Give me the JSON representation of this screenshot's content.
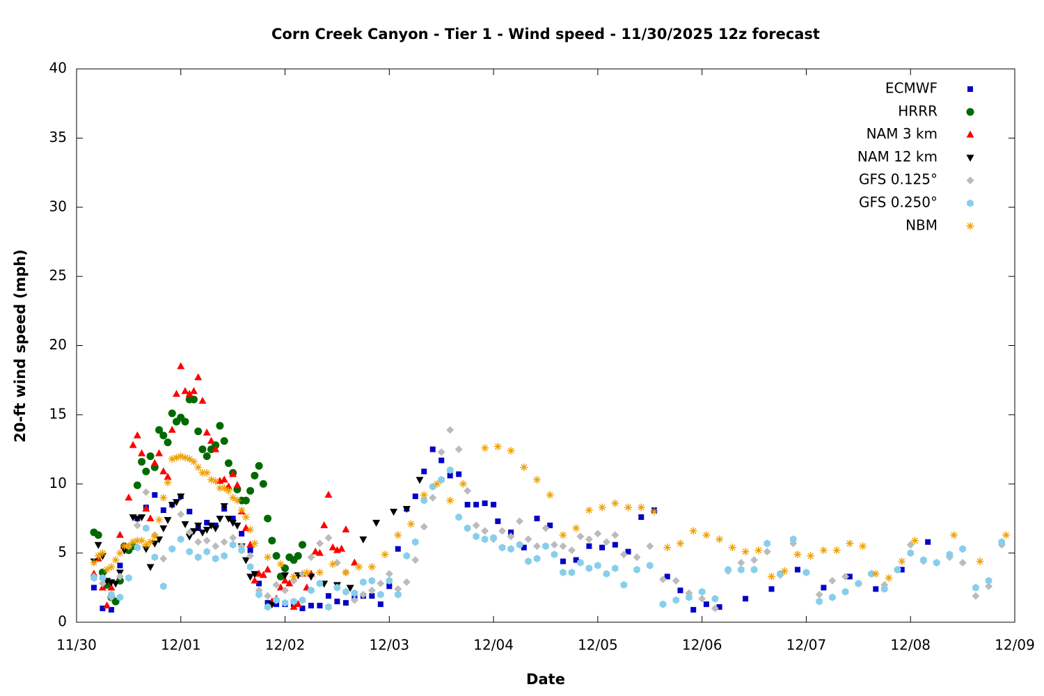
{
  "chart_data": {
    "type": "scatter",
    "title": "Corn Creek Canyon - Tier 1 - Wind speed - 11/30/2025 12z forecast",
    "x_label": "Date",
    "y_label": "20-ft wind speed (mph)",
    "xlim": [
      0,
      216
    ],
    "ylim": [
      0,
      40
    ],
    "xticks": [
      {
        "value": 0,
        "label": "11/30"
      },
      {
        "value": 24,
        "label": "12/01"
      },
      {
        "value": 48,
        "label": "12/02"
      },
      {
        "value": 72,
        "label": "12/03"
      },
      {
        "value": 96,
        "label": "12/04"
      },
      {
        "value": 120,
        "label": "12/05"
      },
      {
        "value": 144,
        "label": "12/06"
      },
      {
        "value": 168,
        "label": "12/07"
      },
      {
        "value": 192,
        "label": "12/08"
      },
      {
        "value": 216,
        "label": "12/09"
      }
    ],
    "yticks": [
      0,
      5,
      10,
      15,
      20,
      25,
      30,
      35,
      40
    ],
    "grid": false,
    "legend": "top-right",
    "series": [
      {
        "name": "ECMWF",
        "color": "#0000c8",
        "marker": "square",
        "x": [
          4,
          6,
          8,
          10,
          12,
          14,
          16,
          18,
          20,
          22,
          24,
          26,
          28,
          30,
          32,
          34,
          36,
          38,
          40,
          42,
          44,
          46,
          48,
          50,
          52,
          54,
          56,
          58,
          60,
          62,
          64,
          66,
          68,
          70,
          72,
          74,
          76,
          78,
          80,
          82,
          84,
          86,
          88,
          90,
          92,
          94,
          96,
          97,
          100,
          103,
          106,
          109,
          112,
          115,
          118,
          121,
          124,
          127,
          130,
          133,
          136,
          139,
          142,
          145,
          148,
          154,
          160,
          166,
          172,
          178,
          184,
          190,
          196
        ],
        "values": [
          2.5,
          1.0,
          0.9,
          4.1,
          5.2,
          7.5,
          8.3,
          9.2,
          8.1,
          8.5,
          9.1,
          8.0,
          6.8,
          7.2,
          7.0,
          8.2,
          7.5,
          6.4,
          5.2,
          2.8,
          1.4,
          1.3,
          1.3,
          1.3,
          1.0,
          1.2,
          1.2,
          1.9,
          1.5,
          1.4,
          1.8,
          1.9,
          1.9,
          1.3,
          2.6,
          5.3,
          8.2,
          9.1,
          10.9,
          12.5,
          11.7,
          10.6,
          10.7,
          8.5,
          8.5,
          8.6,
          8.5,
          7.3,
          6.5,
          5.4,
          7.5,
          7.0,
          4.4,
          4.5,
          5.5,
          5.4,
          5.6,
          5.1,
          7.6,
          8.1,
          3.3,
          2.3,
          0.9,
          1.3,
          1.1,
          1.7,
          2.4,
          3.8,
          2.5,
          3.3,
          2.4,
          3.8,
          5.8
        ]
      },
      {
        "name": "HRRR",
        "color": "#006a00",
        "marker": "circle",
        "x": [
          4,
          5,
          6,
          7,
          8,
          9,
          10,
          11,
          12,
          13,
          14,
          15,
          16,
          17,
          18,
          19,
          20,
          21,
          22,
          23,
          24,
          25,
          26,
          27,
          28,
          29,
          30,
          31,
          32,
          33,
          34,
          35,
          36,
          37,
          38,
          39,
          40,
          41,
          42,
          43,
          44,
          45,
          46,
          47,
          48,
          49,
          50,
          51,
          52
        ],
        "values": [
          6.5,
          6.3,
          3.6,
          2.7,
          1.8,
          1.5,
          3.0,
          5.5,
          5.2,
          5.5,
          9.9,
          11.6,
          10.9,
          12.0,
          11.2,
          13.9,
          13.5,
          13.0,
          15.1,
          14.5,
          14.8,
          14.5,
          16.1,
          16.1,
          13.8,
          12.5,
          12.0,
          12.5,
          12.8,
          14.2,
          13.1,
          11.5,
          10.8,
          9.6,
          8.8,
          8.8,
          9.5,
          10.6,
          11.3,
          10.0,
          7.5,
          5.9,
          4.8,
          3.3,
          3.9,
          4.7,
          4.5,
          4.8,
          5.6
        ]
      },
      {
        "name": "NAM 3 km",
        "color": "#ff0000",
        "marker": "triangle-up",
        "x": [
          4,
          5,
          6,
          7,
          8,
          10,
          11,
          12,
          13,
          14,
          15,
          16,
          17,
          18,
          19,
          20,
          21,
          22,
          23,
          24,
          25,
          26,
          27,
          28,
          29,
          30,
          31,
          32,
          33,
          34,
          35,
          36,
          37,
          38,
          39,
          40,
          41,
          42,
          43,
          44,
          45,
          46,
          47,
          48,
          49,
          50,
          51,
          52,
          53,
          54,
          55,
          56,
          57,
          58,
          59,
          60,
          61,
          62,
          64
        ],
        "values": [
          3.5,
          4.6,
          2.5,
          1.2,
          2.5,
          6.3,
          5.5,
          9.0,
          12.8,
          13.5,
          12.2,
          8.2,
          7.5,
          11.5,
          12.2,
          10.9,
          10.5,
          13.9,
          16.5,
          18.5,
          16.7,
          16.5,
          16.7,
          17.7,
          16.0,
          13.7,
          13.1,
          12.5,
          10.2,
          10.3,
          9.8,
          10.7,
          9.9,
          8.0,
          6.8,
          5.6,
          3.0,
          3.5,
          3.4,
          3.8,
          1.5,
          1.7,
          2.5,
          3.0,
          2.8,
          1.1,
          1.3,
          3.5,
          2.5,
          3.5,
          5.1,
          5.0,
          7.0,
          9.2,
          5.4,
          5.2,
          5.3,
          6.7,
          4.3
        ]
      },
      {
        "name": "NAM 12 km",
        "color": "#000000",
        "marker": "triangle-down",
        "x": [
          4,
          5,
          6,
          7,
          8,
          9,
          10,
          11,
          13,
          14,
          15,
          16,
          17,
          18,
          19,
          20,
          21,
          22,
          23,
          24,
          25,
          26,
          27,
          28,
          29,
          30,
          31,
          32,
          33,
          34,
          35,
          36,
          37,
          38,
          39,
          40,
          41,
          45,
          48,
          51,
          54,
          57,
          60,
          63,
          66,
          69,
          73,
          76,
          79
        ],
        "values": [
          4.4,
          5.6,
          4.8,
          3.0,
          2.9,
          2.8,
          3.6,
          5.2,
          7.6,
          7.5,
          7.6,
          5.3,
          4.0,
          5.7,
          6.0,
          6.8,
          7.4,
          8.5,
          8.7,
          9.1,
          7.1,
          6.2,
          6.6,
          7.0,
          6.5,
          6.7,
          7.0,
          6.8,
          7.5,
          8.4,
          7.5,
          7.2,
          7.0,
          5.5,
          4.5,
          3.3,
          3.5,
          1.3,
          3.4,
          3.4,
          3.3,
          2.8,
          2.7,
          2.5,
          6.0,
          7.2,
          8.0,
          8.2,
          10.3
        ]
      },
      {
        "name": "GFS 0.125°",
        "color": "#bbbbbb",
        "marker": "diamond",
        "x": [
          4,
          6,
          8,
          10,
          12,
          14,
          16,
          18,
          20,
          22,
          24,
          26,
          28,
          30,
          32,
          34,
          36,
          38,
          40,
          42,
          44,
          46,
          48,
          50,
          52,
          54,
          56,
          58,
          60,
          62,
          64,
          66,
          68,
          70,
          72,
          74,
          76,
          78,
          80,
          82,
          84,
          86,
          88,
          90,
          92,
          94,
          96,
          98,
          100,
          102,
          104,
          106,
          108,
          110,
          112,
          114,
          116,
          118,
          120,
          122,
          124,
          126,
          129,
          132,
          135,
          138,
          141,
          144,
          147,
          150,
          153,
          156,
          159,
          162,
          165,
          168,
          171,
          174,
          177,
          180,
          183,
          186,
          189,
          192,
          195,
          198,
          201,
          204,
          207,
          210,
          213
        ],
        "values": [
          3.3,
          2.8,
          1.8,
          3.3,
          5.5,
          7.0,
          9.4,
          6.3,
          4.6,
          5.3,
          7.8,
          6.5,
          5.8,
          5.9,
          5.5,
          5.8,
          6.1,
          5.5,
          4.8,
          2.3,
          1.9,
          2.7,
          2.3,
          3.0,
          3.5,
          4.7,
          5.7,
          6.1,
          4.3,
          3.6,
          1.6,
          2.0,
          2.3,
          2.8,
          3.5,
          2.4,
          2.9,
          4.5,
          6.9,
          9.0,
          12.3,
          13.9,
          12.5,
          9.5,
          7.0,
          6.6,
          6.0,
          6.6,
          6.2,
          7.3,
          6.0,
          5.5,
          6.8,
          5.6,
          5.5,
          5.2,
          6.2,
          6.0,
          6.4,
          5.8,
          6.3,
          4.9,
          4.7,
          5.5,
          3.1,
          3.0,
          2.1,
          1.7,
          1.0,
          3.7,
          4.3,
          4.5,
          5.1,
          3.4,
          5.7,
          3.6,
          2.0,
          3.0,
          3.3,
          2.8,
          3.5,
          2.7,
          3.8,
          5.6,
          4.4,
          4.3,
          4.7,
          4.3,
          1.9,
          2.6,
          5.6
        ]
      },
      {
        "name": "GFS 0.250°",
        "color": "#87ceeb",
        "marker": "hexagon",
        "x": [
          4,
          6,
          8,
          10,
          12,
          14,
          16,
          18,
          20,
          22,
          24,
          26,
          28,
          30,
          32,
          34,
          36,
          38,
          40,
          42,
          44,
          46,
          48,
          50,
          52,
          54,
          56,
          58,
          60,
          62,
          64,
          66,
          68,
          70,
          72,
          74,
          76,
          78,
          80,
          82,
          84,
          86,
          88,
          90,
          92,
          94,
          96,
          98,
          100,
          102,
          104,
          106,
          108,
          110,
          112,
          114,
          116,
          118,
          120,
          122,
          124,
          126,
          129,
          132,
          135,
          138,
          141,
          144,
          147,
          150,
          153,
          156,
          159,
          162,
          165,
          168,
          171,
          174,
          177,
          180,
          183,
          186,
          189,
          192,
          195,
          198,
          201,
          204,
          207,
          210,
          213
        ],
        "values": [
          3.2,
          3.2,
          2.0,
          1.8,
          3.2,
          5.4,
          6.8,
          4.7,
          2.6,
          5.3,
          6.0,
          5.1,
          4.7,
          5.1,
          4.6,
          4.8,
          5.6,
          5.2,
          4.0,
          2.0,
          1.1,
          1.6,
          1.4,
          1.5,
          1.6,
          2.3,
          2.8,
          1.1,
          2.5,
          2.2,
          2.1,
          2.9,
          3.0,
          2.0,
          3.0,
          2.0,
          4.8,
          5.8,
          8.8,
          9.8,
          10.3,
          11.0,
          7.6,
          6.8,
          6.2,
          6.0,
          6.1,
          5.4,
          5.3,
          5.6,
          4.4,
          4.6,
          5.5,
          4.9,
          3.6,
          3.6,
          4.3,
          3.9,
          4.1,
          3.5,
          3.9,
          2.7,
          3.8,
          4.1,
          1.3,
          1.6,
          1.8,
          2.2,
          1.7,
          3.8,
          3.8,
          3.8,
          5.7,
          3.5,
          6.0,
          3.6,
          1.5,
          1.8,
          2.2,
          2.8,
          3.5,
          2.4,
          3.8,
          5.0,
          4.5,
          4.3,
          4.9,
          5.3,
          2.5,
          3.0,
          5.8
        ]
      },
      {
        "name": "NBM",
        "color": "#f0a000",
        "marker": "asterisk",
        "x": [
          4,
          5,
          6,
          7,
          8,
          9,
          10,
          11,
          12,
          13,
          14,
          15,
          16,
          17,
          18,
          19,
          20,
          21,
          22,
          23,
          24,
          25,
          26,
          27,
          28,
          29,
          30,
          31,
          32,
          33,
          34,
          35,
          36,
          37,
          38,
          39,
          40,
          41,
          44,
          47,
          50,
          53,
          56,
          59,
          62,
          65,
          68,
          71,
          74,
          77,
          80,
          83,
          86,
          89,
          94,
          97,
          100,
          103,
          106,
          109,
          112,
          115,
          118,
          121,
          124,
          127,
          130,
          133,
          136,
          139,
          142,
          145,
          148,
          151,
          154,
          157,
          160,
          163,
          166,
          169,
          172,
          175,
          178,
          181,
          184,
          187,
          190,
          193,
          202,
          208,
          214
        ],
        "values": [
          4.3,
          4.8,
          5.0,
          3.8,
          4.0,
          4.5,
          5.0,
          5.5,
          5.5,
          5.8,
          5.9,
          5.9,
          5.6,
          5.8,
          6.2,
          7.4,
          9.0,
          10.1,
          11.8,
          11.9,
          12.0,
          11.9,
          11.8,
          11.6,
          11.2,
          10.8,
          10.8,
          10.3,
          10.2,
          9.7,
          9.7,
          9.5,
          9.0,
          8.8,
          8.1,
          7.6,
          6.7,
          5.7,
          4.7,
          4.2,
          3.3,
          3.6,
          3.6,
          4.2,
          3.6,
          4.0,
          4.0,
          4.9,
          6.3,
          7.1,
          9.2,
          10.0,
          8.8,
          10.0,
          12.6,
          12.7,
          12.4,
          11.2,
          10.3,
          9.2,
          6.3,
          6.8,
          8.1,
          8.3,
          8.6,
          8.3,
          8.3,
          8.0,
          5.4,
          5.7,
          6.6,
          6.3,
          6.0,
          5.4,
          5.1,
          5.2,
          3.3,
          3.7,
          4.9,
          4.8,
          5.2,
          5.2,
          5.7,
          5.5,
          3.5,
          3.2,
          4.4,
          5.9,
          6.3,
          4.4,
          6.3
        ]
      }
    ]
  }
}
